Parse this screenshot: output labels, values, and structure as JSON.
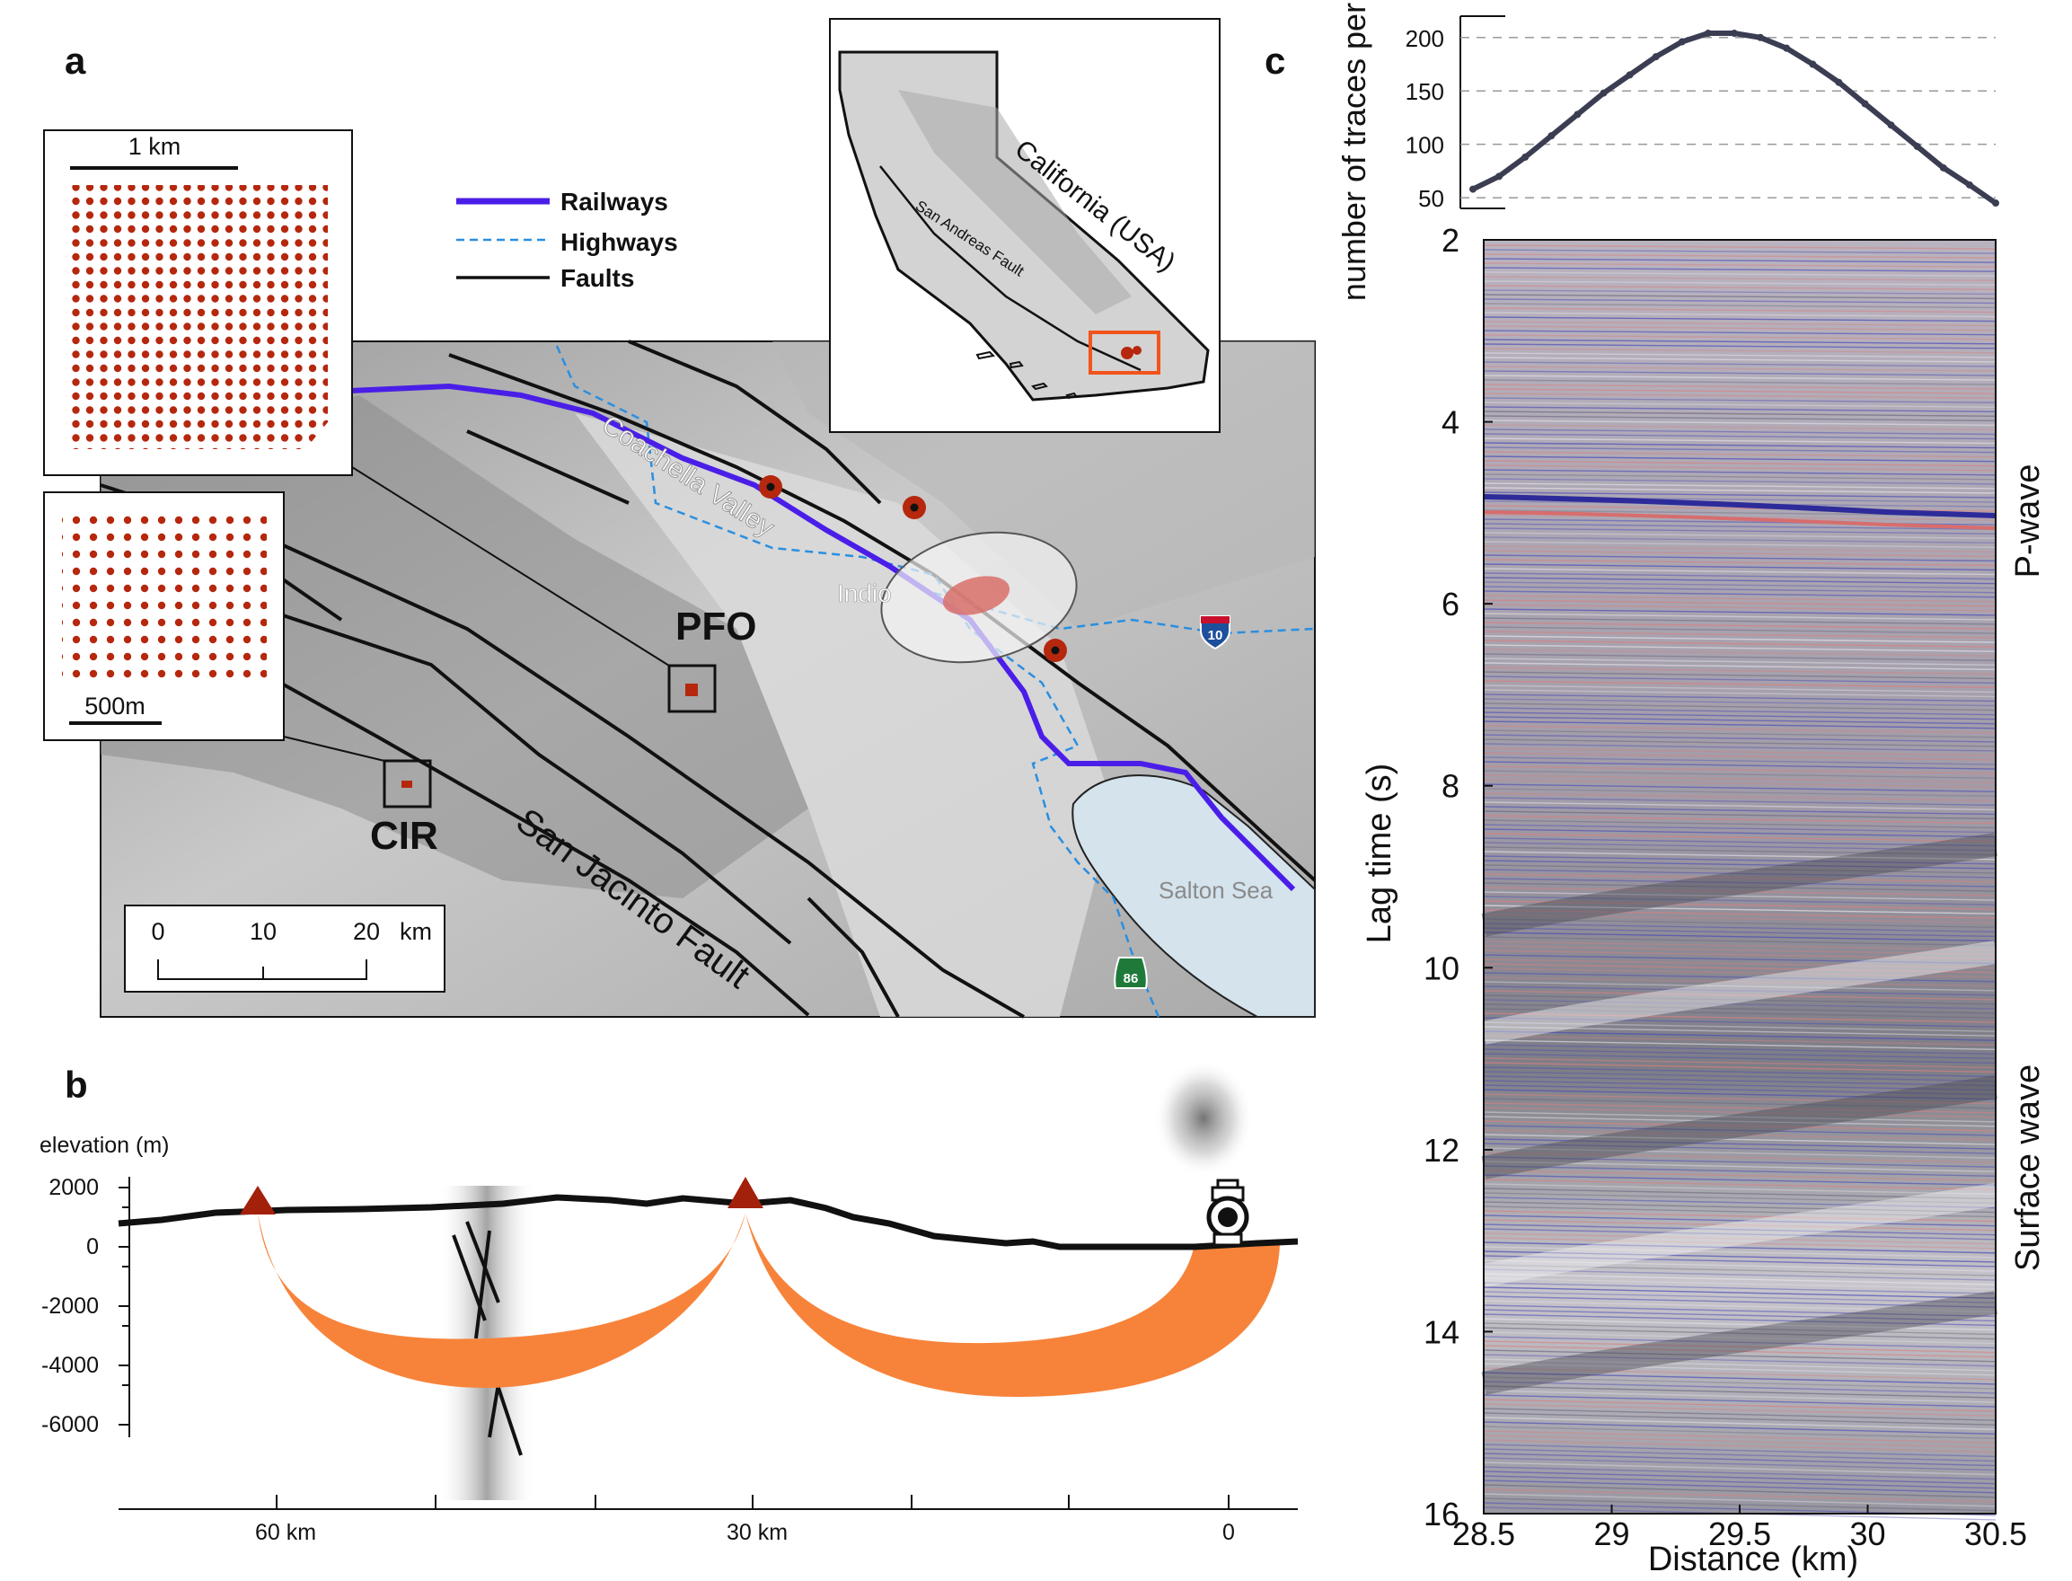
{
  "panels": {
    "a": "a",
    "b": "b",
    "c": "c"
  },
  "map": {
    "legend": {
      "railways": "Railways",
      "highways": "Highways",
      "faults": "Faults"
    },
    "labels": {
      "valley": "Coachella Valley",
      "indio": "Indio",
      "pfo": "PFO",
      "cir": "CIR",
      "fault": "San Jacinto Fault",
      "sea": "Salton Sea"
    },
    "shields": {
      "i10": "10",
      "ca86": "86"
    },
    "scale": {
      "ticks": [
        "0",
        "10",
        "20"
      ],
      "unit": "km"
    },
    "inset_top": {
      "scale": "1 km"
    },
    "inset_bottom": {
      "scale": "500m"
    },
    "california": {
      "title": "California (USA)",
      "fault": "San Andreas Fault"
    },
    "colors": {
      "railway": "#4a1ee8",
      "highway": "#2a8fe0",
      "fault": "#111111",
      "station": "#b5280e",
      "orange": "#f7833a"
    }
  },
  "section": {
    "ylabel": "elevation (m)",
    "yticks": [
      "2000",
      "0",
      "-2000",
      "-4000",
      "-6000"
    ],
    "xticks": [
      "60 km",
      "30 km",
      "0"
    ]
  },
  "chart_data": [
    {
      "type": "line",
      "ylabel": "number of traces per bin",
      "yticks": [
        50,
        100,
        150,
        200
      ],
      "ylim": [
        40,
        220
      ],
      "x": [
        28.5,
        28.6,
        28.7,
        28.8,
        28.9,
        29.0,
        29.1,
        29.2,
        29.3,
        29.4,
        29.5,
        29.6,
        29.7,
        29.8,
        29.9,
        30.0,
        30.1,
        30.2,
        30.3,
        30.4,
        30.5
      ],
      "series": [
        {
          "values": [
            58,
            70,
            88,
            108,
            128,
            148,
            165,
            182,
            196,
            204,
            204,
            200,
            190,
            175,
            158,
            138,
            118,
            98,
            78,
            62,
            45
          ]
        }
      ]
    },
    {
      "type": "heatmap",
      "xlabel": "Distance (km)",
      "ylabel": "Lag time (s)",
      "xticks": [
        "28.5",
        "29",
        "29.5",
        "30",
        "30.5"
      ],
      "yticks": [
        "2",
        "4",
        "6",
        "8",
        "10",
        "12",
        "14",
        "16"
      ],
      "xlim": [
        28.5,
        30.5
      ],
      "ylim": [
        2,
        16
      ],
      "annotations": [
        "P-wave",
        "Surface wave"
      ]
    }
  ]
}
